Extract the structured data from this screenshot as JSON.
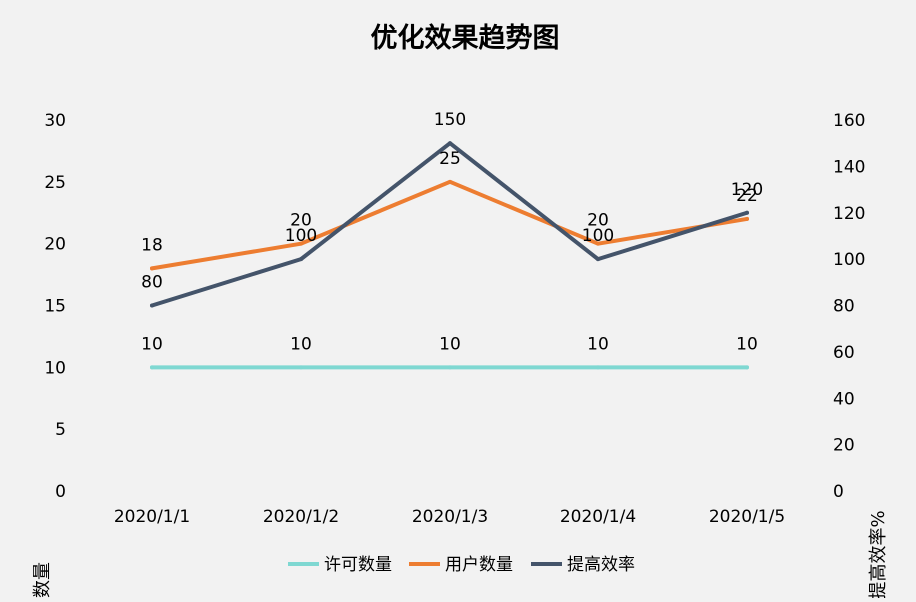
{
  "chart_data": {
    "type": "line",
    "title": "优化效果趋势图",
    "categories": [
      "2020/1/1",
      "2020/1/2",
      "2020/1/3",
      "2020/1/4",
      "2020/1/5"
    ],
    "y_left": {
      "label": "数量",
      "lim": [
        0,
        30
      ],
      "ticks": [
        0,
        5,
        10,
        15,
        20,
        25,
        30
      ]
    },
    "y_right": {
      "label": "提高效率%",
      "lim": [
        0,
        160
      ],
      "ticks": [
        0,
        20,
        40,
        60,
        80,
        100,
        120,
        140,
        160
      ]
    },
    "series": [
      {
        "name": "许可数量",
        "axis": "left",
        "color": "#7fd8d2",
        "values": [
          10,
          10,
          10,
          10,
          10
        ],
        "labels": [
          "10",
          "10",
          "10",
          "10",
          "10"
        ]
      },
      {
        "name": "用户数量",
        "axis": "left",
        "color": "#ed7d31",
        "values": [
          18,
          20,
          25,
          20,
          22
        ],
        "labels": [
          "18",
          "20",
          "25",
          "20",
          "22"
        ]
      },
      {
        "name": "提高效率",
        "axis": "right",
        "color": "#44546a",
        "values": [
          80,
          100,
          150,
          100,
          120
        ],
        "labels": [
          "80",
          "100",
          "150",
          "100",
          "120"
        ]
      }
    ],
    "grid": false,
    "legend_position": "bottom"
  }
}
